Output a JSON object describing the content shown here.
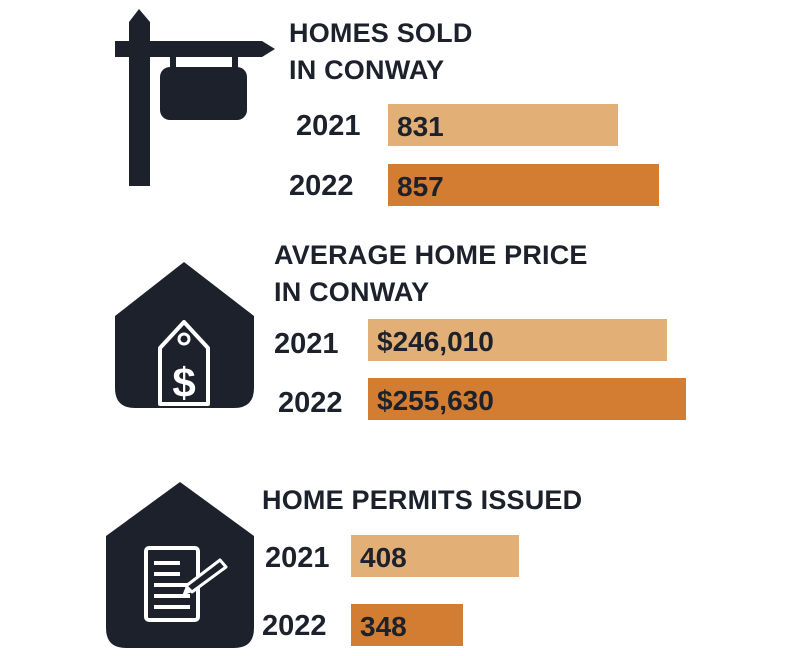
{
  "colors": {
    "ink": "#1c212b",
    "bar_2021": "#e2b077",
    "bar_2022": "#d37d32",
    "background": "#ffffff"
  },
  "icons": [
    "for-sale-sign-icon",
    "house-price-tag-icon",
    "house-document-icon"
  ],
  "chart_data": [
    {
      "type": "bar",
      "orientation": "horizontal",
      "title_lines": [
        "HOMES SOLD",
        "IN CONWAY"
      ],
      "categories": [
        "2021",
        "2022"
      ],
      "values": [
        831,
        857
      ],
      "value_labels": [
        "831",
        "857"
      ],
      "colors": [
        "#e2b077",
        "#d37d32"
      ]
    },
    {
      "type": "bar",
      "orientation": "horizontal",
      "title_lines": [
        "AVERAGE HOME PRICE",
        "IN CONWAY"
      ],
      "categories": [
        "2021",
        "2022"
      ],
      "values": [
        246010,
        255630
      ],
      "value_labels": [
        "$246,010",
        "$255,630"
      ],
      "colors": [
        "#e2b077",
        "#d37d32"
      ]
    },
    {
      "type": "bar",
      "orientation": "horizontal",
      "title_lines": [
        "HOME PERMITS ISSUED"
      ],
      "categories": [
        "2021",
        "2022"
      ],
      "values": [
        408,
        348
      ],
      "value_labels": [
        "408",
        "348"
      ],
      "colors": [
        "#e2b077",
        "#d37d32"
      ]
    }
  ]
}
